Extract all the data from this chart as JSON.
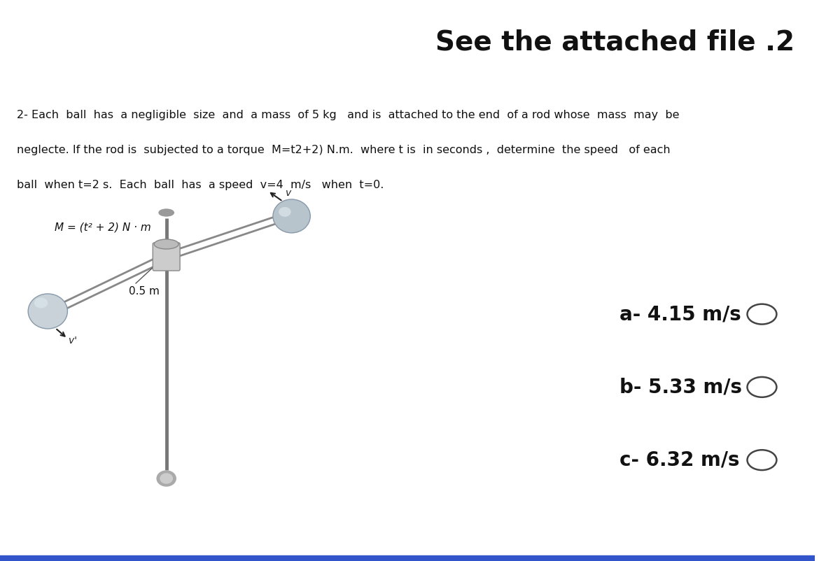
{
  "title": "See the attached file .2",
  "title_fontsize": 28,
  "title_fontweight": "bold",
  "background_color": "#ffffff",
  "problem_text_line1": "2- Each  ball  has  a negligible  size  and  a mass  of 5 kg   and is  attached to the end  of a rod whose  mass  may  be",
  "problem_text_line2": "neglecte. If the rod is  subjected to a torque  M=t2+2) N.m.  where t is  in seconds ,  determine  the speed   of each",
  "problem_text_line3": "ball  when t=2 s.  Each  ball  has  a speed  v=4  m/s   when  t=0.",
  "answer_a": "a- 4.15 m/s",
  "answer_b": "b- 5.33 m/s",
  "answer_c": "c- 6.32 m/s",
  "answer_fontsize": 20,
  "label_M": "M = (t² + 2) N · m",
  "label_05m": "0.5 m",
  "bottom_line_color": "#3355cc"
}
